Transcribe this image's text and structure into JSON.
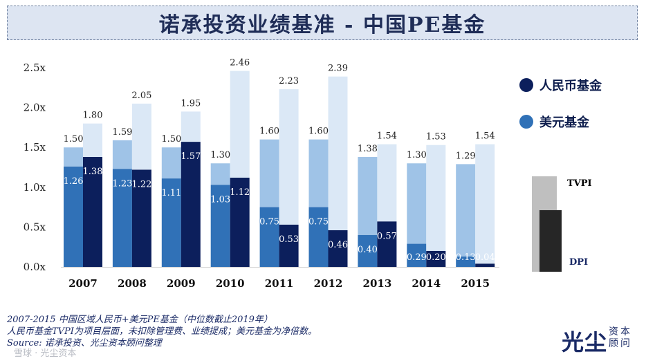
{
  "title": "诺承投资业绩基准 - 中国PE基金",
  "legend": [
    {
      "label": "人民币基金",
      "color": "#0c1f5c"
    },
    {
      "label": "美元基金",
      "color": "#3071b7"
    }
  ],
  "key": {
    "tvpi_label": "TVPI",
    "dpi_label": "DPI",
    "tvpi_color": "#bfbfbf",
    "dpi_color": "#262626"
  },
  "chart_data": {
    "type": "bar",
    "categories": [
      "2007",
      "2008",
      "2009",
      "2010",
      "2011",
      "2012",
      "2013",
      "2014",
      "2015"
    ],
    "ylim": [
      0,
      2.5
    ],
    "yticks": [
      "0.0x",
      "0.5x",
      "1.0x",
      "1.5x",
      "2.0x",
      "2.5x"
    ],
    "series": [
      {
        "name": "美元基金",
        "tvpi": [
          1.5,
          1.59,
          1.5,
          1.3,
          1.6,
          1.6,
          1.38,
          1.3,
          1.29
        ],
        "dpi": [
          1.26,
          1.23,
          1.11,
          1.03,
          0.75,
          0.75,
          0.4,
          0.29,
          0.13
        ],
        "colors": {
          "dpi": "#3071b7",
          "tvpi": "#9fc3e7"
        }
      },
      {
        "name": "人民币基金",
        "tvpi": [
          1.8,
          2.05,
          1.95,
          2.46,
          2.23,
          2.39,
          1.54,
          1.53,
          1.54
        ],
        "dpi": [
          1.38,
          1.22,
          1.57,
          1.12,
          0.53,
          0.46,
          0.57,
          0.2,
          0.04
        ],
        "colors": {
          "dpi": "#0c1f5c",
          "tvpi": "#dbe8f6"
        }
      }
    ],
    "value_labels": {
      "美元基金": {
        "tvpi": [
          "1.50",
          "1.59",
          "1.50",
          "1.30",
          "1.60",
          "1.60",
          "1.38",
          "1.30",
          "1.29"
        ],
        "dpi": [
          "1.26",
          "1.23",
          "1.11",
          "1.03",
          "0.75",
          "0.75",
          "0.40",
          "0.29",
          "0.13"
        ]
      },
      "人民币基金": {
        "tvpi": [
          "1.80",
          "2.05",
          "1.95",
          "2.46",
          "2.23",
          "2.39",
          "1.54",
          "1.53",
          "1.54"
        ],
        "dpi": [
          "1.38",
          "1.22",
          "1.57",
          "1.12",
          "0.53",
          "0.46",
          "0.57",
          "0.20",
          "0.04"
        ]
      }
    }
  },
  "notes": [
    "2007-2015 中国区域人民币+美元PE基金（中位数截止2019年）",
    "人民币基金TVPI为项目层面，未扣除管理费、业绩提成；美元基金为净倍数。",
    "Source: 诺承投资、光尘资本顾问整理"
  ],
  "logo": {
    "main": "光尘",
    "sub": "资本顾问"
  },
  "watermark": "雪球 · 光尘资本"
}
